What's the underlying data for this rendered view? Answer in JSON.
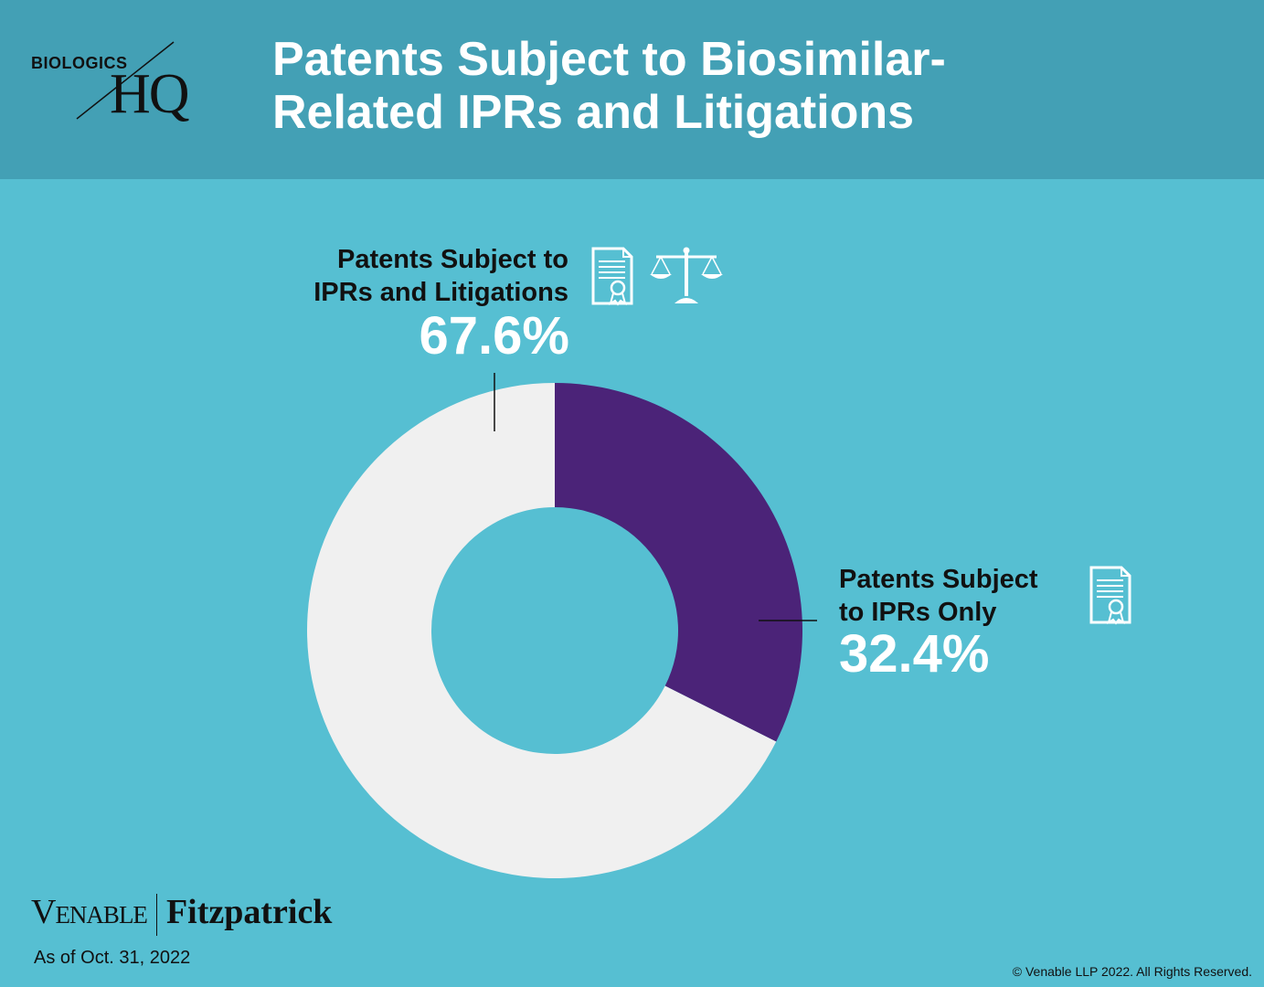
{
  "header": {
    "logo_top": "BIOLOGICS",
    "logo_mark": "HQ",
    "title_line1": "Patents Subject to Biosimilar-",
    "title_line2": "Related IPRs and Litigations"
  },
  "chart_data": {
    "type": "pie",
    "variant": "donut",
    "title": "Patents Subject to Biosimilar-Related IPRs and Litigations",
    "slices": [
      {
        "label": "Patents Subject to IPRs Only",
        "value": 32.4,
        "display": "32.4%",
        "color": "#4b2378"
      },
      {
        "label": "Patents Subject to IPRs and Litigations",
        "value": 67.6,
        "display": "67.6%",
        "color": "#f0f0f0"
      }
    ]
  },
  "labels": {
    "ipr_lit_line1": "Patents Subject to",
    "ipr_lit_line2": "IPRs and Litigations",
    "ipr_lit_pct": "67.6%",
    "ipr_only_line1": "Patents Subject",
    "ipr_only_line2": "to IPRs Only",
    "ipr_only_pct": "32.4%"
  },
  "icons": {
    "certificate": "certificate-icon",
    "scales": "scales-of-justice-icon"
  },
  "colors": {
    "background": "#56bfd2",
    "header": "#43a0b5",
    "ipr_only": "#4b2378",
    "ipr_and_litigation": "#f0f0f0"
  },
  "footer": {
    "brand_left": "Venable",
    "brand_right": "Fitzpatrick",
    "date": "As of Oct. 31, 2022",
    "copyright": "© Venable LLP 2022. All Rights Reserved."
  }
}
